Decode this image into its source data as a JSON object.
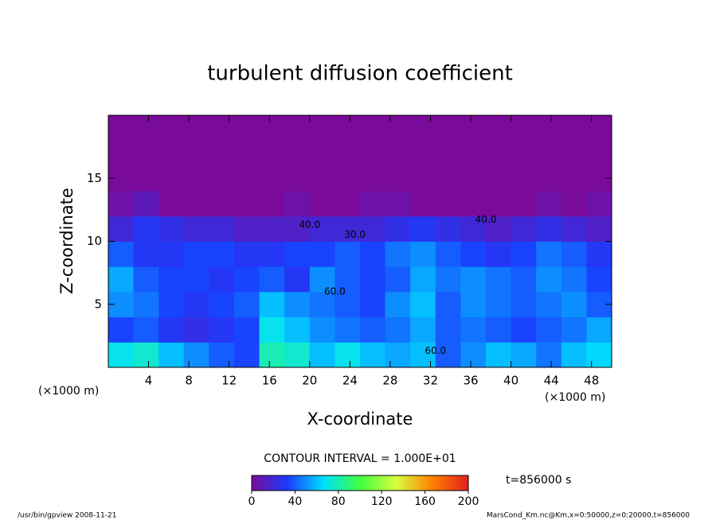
{
  "chart_data": {
    "type": "contour",
    "title": "turbulent diffusion coefficient",
    "x_label": "X-coordinate",
    "y_label": "Z-coordinate",
    "x_unit": "(×1000 m)",
    "y_unit": "(×1000 m)",
    "xlim": [
      0,
      50
    ],
    "xticks": [
      4,
      8,
      12,
      16,
      20,
      24,
      28,
      32,
      36,
      40,
      44,
      48
    ],
    "ylim": [
      0,
      20
    ],
    "yticks": [
      5,
      10,
      15
    ],
    "field": {
      "x": [
        1.25,
        3.75,
        6.25,
        8.75,
        11.25,
        13.75,
        16.25,
        18.75,
        21.25,
        23.75,
        26.25,
        28.75,
        31.25,
        33.75,
        36.25,
        38.75,
        41.25,
        43.75,
        46.25,
        48.75
      ],
      "z": [
        1,
        3,
        5,
        7,
        9,
        11,
        13,
        15,
        17,
        19
      ],
      "values": [
        [
          70,
          75,
          60,
          50,
          40,
          35,
          80,
          75,
          60,
          70,
          60,
          55,
          60,
          40,
          50,
          60,
          55,
          45,
          60,
          65
        ],
        [
          35,
          40,
          30,
          25,
          30,
          35,
          70,
          60,
          50,
          45,
          40,
          45,
          55,
          40,
          45,
          40,
          35,
          40,
          45,
          55
        ],
        [
          50,
          45,
          35,
          30,
          35,
          40,
          60,
          50,
          45,
          40,
          35,
          50,
          60,
          40,
          50,
          45,
          40,
          45,
          50,
          40
        ],
        [
          55,
          40,
          35,
          35,
          30,
          35,
          40,
          30,
          50,
          40,
          35,
          40,
          55,
          45,
          50,
          45,
          40,
          50,
          45,
          35
        ],
        [
          40,
          30,
          30,
          35,
          35,
          30,
          30,
          35,
          35,
          40,
          35,
          45,
          50,
          40,
          35,
          30,
          35,
          45,
          40,
          30
        ],
        [
          20,
          30,
          25,
          20,
          20,
          15,
          15,
          15,
          20,
          20,
          20,
          25,
          30,
          25,
          20,
          15,
          20,
          25,
          20,
          15
        ],
        [
          5,
          10,
          0,
          0,
          0,
          0,
          0,
          5,
          0,
          0,
          5,
          5,
          0,
          0,
          0,
          0,
          0,
          5,
          0,
          5
        ],
        [
          0,
          0,
          0,
          0,
          0,
          0,
          0,
          0,
          0,
          0,
          0,
          0,
          0,
          0,
          0,
          0,
          0,
          0,
          0,
          0
        ],
        [
          0,
          0,
          0,
          0,
          0,
          0,
          0,
          0,
          0,
          0,
          0,
          0,
          0,
          0,
          0,
          0,
          0,
          0,
          0,
          0
        ],
        [
          0,
          0,
          0,
          0,
          0,
          0,
          0,
          0,
          0,
          0,
          0,
          0,
          0,
          0,
          0,
          0,
          0,
          0,
          0,
          0
        ]
      ]
    },
    "contour_labels": [
      {
        "x": 22.5,
        "z": 6,
        "label": "60.0"
      },
      {
        "x": 20,
        "z": 11.3,
        "label": "40.0"
      },
      {
        "x": 24.5,
        "z": 10.5,
        "label": "30.0"
      },
      {
        "x": 37.5,
        "z": 11.7,
        "label": "40.0"
      },
      {
        "x": 32.5,
        "z": 1.3,
        "label": "60.0"
      }
    ],
    "colormap": [
      "#7a0a9a",
      "#1a3cff",
      "#00e0ff",
      "#40ff40",
      "#d8ff40",
      "#ff8000",
      "#e02020"
    ],
    "contour_interval": "CONTOUR INTERVAL = 1.000E+01",
    "colorbar": {
      "lim": [
        0,
        200
      ],
      "ticks": [
        0,
        40,
        80,
        120,
        160,
        200
      ]
    },
    "time_label": "t=856000 s",
    "footer_left": "/usr/bin/gpview   2008-11-21",
    "footer_right": "MarsCond_Km.nc@Km,x=0:50000,z=0:20000,t=856000"
  }
}
